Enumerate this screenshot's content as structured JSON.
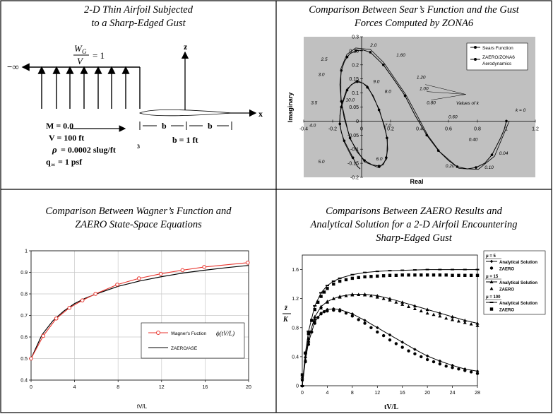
{
  "panels": {
    "tl": {
      "title": "2-D Thin Airfoil Subjected\nto a Sharp-Edged Gust",
      "gust_num": "W",
      "gust_num_sub": "G",
      "gust_den": "V",
      "gust_eq": "= 1",
      "axis_z": "z",
      "axis_x": "x",
      "minus_inf": "−∞",
      "mach": "M = 0.0",
      "velocity": "V = 100 ft",
      "density_rho": "ρ",
      "density": "= 0.0002 slug/ft",
      "density_exp": "3",
      "q_label": "q",
      "q_sub": "∞",
      "q_val": "= 1 psf",
      "b_left": "b",
      "b_right": "b",
      "b_eq": "b = 1 ft"
    },
    "tr": {
      "title": "Comparison Between Sear’s Function and the Gust\nForces Computed by ZONA6",
      "xlabel": "Real",
      "ylabel": "Imaginary",
      "legend": [
        "Sears Function",
        "ZAERO/ZONA6",
        "Aerodynamics"
      ],
      "values_of_k": "Values of k",
      "k0_label": "k = 0"
    },
    "bl": {
      "title": "Comparison Between Wagner’s Function and\nZAERO State-Space Equations",
      "xlabel": "tV/L",
      "legend": [
        "Wagner's Fuction",
        "ZAERO/ASE"
      ]
    },
    "br": {
      "title": "Comparisons Between ZAERO Results and\nAnalytical Solution for a 2-D Airfoil Encountering\nSharp-Edged Gust",
      "xlabel": "tV/L",
      "ylabel_top": "z̄",
      "ylabel_bottom": "K",
      "legend_groups": [
        {
          "header": "μ = 5",
          "items": [
            "Analytical Solution",
            "ZAERO"
          ]
        },
        {
          "header": "μ = 15",
          "items": [
            "Analytical Solution",
            "ZAERO"
          ]
        },
        {
          "header": "μ = 100",
          "items": [
            "Analytical Solution",
            "ZAERO"
          ]
        }
      ]
    }
  },
  "chart_data": [
    {
      "id": "sears",
      "type": "scatter",
      "title": "Comparison Between Sear’s Function and the Gust Forces Computed by ZONA6",
      "xlabel": "Real",
      "ylabel": "Imaginary",
      "xlim": [
        -0.4,
        1.2
      ],
      "ylim": [
        -0.2,
        0.3
      ],
      "xticks": [
        "-0.4",
        "-0.2",
        "0",
        "0.2",
        "0.4",
        "0.6",
        "0.8",
        "1",
        "1.2"
      ],
      "yticks": [
        "0.3",
        "0.25",
        "0.2",
        "0.15",
        "0.1",
        "0.05",
        "0",
        "-0.05",
        "-0.1",
        "-0.15",
        "-0.2"
      ],
      "grid": false,
      "legend_position": "top-right",
      "series": [
        {
          "name": "Sears Function",
          "x": [
            1.0,
            0.985,
            0.96,
            0.93,
            0.9,
            0.85,
            0.79,
            0.73,
            0.66,
            0.6,
            0.53,
            0.45,
            0.37,
            0.3,
            0.22,
            0.15,
            0.1,
            0.06,
            0.01,
            -0.04,
            -0.08,
            -0.1,
            -0.12,
            -0.14,
            -0.15,
            -0.14,
            -0.12,
            -0.08,
            -0.03,
            0.02,
            0.07,
            0.12,
            0.15,
            0.17,
            0.18,
            0.175,
            0.16,
            0.12,
            0.08,
            0.04,
            0.01,
            -0.03,
            -0.07,
            -0.1,
            -0.12,
            -0.14,
            -0.15,
            -0.15,
            -0.14,
            -0.12,
            -0.09,
            -0.06,
            -0.03,
            -0.01
          ],
          "y": [
            0.0,
            -0.03,
            -0.06,
            -0.09,
            -0.12,
            -0.15,
            -0.165,
            -0.17,
            -0.162,
            -0.14,
            -0.105,
            -0.05,
            0.02,
            0.09,
            0.15,
            0.2,
            0.225,
            0.245,
            0.253,
            0.25,
            0.24,
            0.228,
            0.21,
            0.18,
            0.13,
            0.07,
            0.01,
            -0.06,
            -0.11,
            -0.14,
            -0.155,
            -0.16,
            -0.155,
            -0.13,
            -0.1,
            -0.06,
            -0.02,
            0.04,
            0.09,
            0.12,
            0.135,
            0.14,
            0.13,
            0.11,
            0.08,
            0.05,
            0.02,
            -0.01,
            -0.04,
            -0.07,
            -0.1,
            -0.13,
            -0.16,
            -0.17
          ]
        },
        {
          "name": "ZAERO/ZONA6 Aerodynamics",
          "x": [
            1.0,
            0.9,
            0.79,
            0.66,
            0.53,
            0.45,
            0.3,
            0.15,
            0.06,
            -0.04,
            -0.1,
            -0.14,
            -0.14,
            -0.08,
            0.02,
            0.12,
            0.17,
            0.175,
            0.12,
            0.04,
            -0.03,
            -0.1,
            -0.14,
            -0.15,
            -0.12,
            -0.06
          ],
          "y": [
            0.0,
            -0.12,
            -0.165,
            -0.162,
            -0.105,
            -0.05,
            0.09,
            0.2,
            0.245,
            0.25,
            0.228,
            0.18,
            0.07,
            -0.06,
            -0.14,
            -0.16,
            -0.13,
            -0.06,
            0.04,
            0.12,
            0.14,
            0.11,
            0.05,
            -0.01,
            -0.07,
            -0.13
          ]
        }
      ],
      "annotations": [
        "2.0",
        "1.60",
        "1.20",
        "1.00",
        "0.80",
        "0.60",
        "0.40",
        "0.20",
        "0.10",
        "0.04",
        "k = 0",
        "2.5",
        "3.0",
        "3.5",
        "4.0",
        "5.0",
        "6.0",
        "7.0",
        "8.0",
        "9.0",
        "10.0"
      ]
    },
    {
      "id": "wagner",
      "type": "line",
      "title": "Comparison Between Wagner’s Function and ZAERO State-Space Equations",
      "xlabel": "tV/L",
      "ylabel": "",
      "xlim": [
        0,
        20
      ],
      "ylim": [
        0.4,
        1.0
      ],
      "xticks": [
        "0",
        "4",
        "8",
        "12",
        "16",
        "20"
      ],
      "yticks": [
        "1",
        "0.9",
        "0.8",
        "0.7",
        "0.6",
        "0.5",
        "0.4"
      ],
      "grid": true,
      "legend_position": "bottom-right",
      "series": [
        {
          "name": "Wagner's Fuction",
          "color": "#e8362f",
          "x": [
            0,
            1.12,
            2.32,
            3.52,
            4.72,
            5.92,
            7.92,
            9.92,
            11.92,
            13.92,
            15.92,
            19.92
          ],
          "y": [
            0.5,
            0.605,
            0.686,
            0.735,
            0.77,
            0.8,
            0.843,
            0.872,
            0.893,
            0.91,
            0.925,
            0.945
          ]
        },
        {
          "name": "ZAERO/ASE",
          "color": "#000000",
          "x": [
            0,
            1,
            2,
            3,
            4,
            5,
            6,
            8,
            10,
            12,
            14,
            16,
            18,
            20
          ],
          "y": [
            0.5,
            0.61,
            0.675,
            0.72,
            0.755,
            0.78,
            0.8,
            0.835,
            0.86,
            0.88,
            0.897,
            0.91,
            0.922,
            0.932
          ]
        }
      ]
    },
    {
      "id": "gust",
      "type": "line",
      "title": "Comparisons Between ZAERO Results and Analytical Solution for a 2-D Airfoil Encountering Sharp-Edged Gust",
      "xlabel": "tV/L",
      "ylabel": "z̄ / K",
      "xlim": [
        0,
        28
      ],
      "ylim": [
        0,
        1.8
      ],
      "xticks": [
        "0",
        "4",
        "8",
        "12",
        "16",
        "20",
        "24",
        "28"
      ],
      "yticks": [
        "1.6",
        "1.2",
        "0.8",
        "0.4",
        "0"
      ],
      "grid": false,
      "legend_position": "top-right",
      "series": [
        {
          "name": "μ = 5 Analytical Solution",
          "marker": "diamond",
          "x": [
            0,
            0.5,
            1,
            2,
            3,
            4,
            5,
            6,
            8,
            10,
            12,
            14,
            16,
            18,
            20,
            22,
            24,
            26,
            28
          ],
          "y": [
            0,
            0.35,
            0.6,
            0.88,
            1.0,
            1.05,
            1.06,
            1.05,
            0.99,
            0.9,
            0.8,
            0.7,
            0.6,
            0.5,
            0.41,
            0.34,
            0.28,
            0.23,
            0.2
          ]
        },
        {
          "name": "μ = 5 ZAERO",
          "marker": "dot",
          "x": [
            0,
            0.5,
            1,
            1.5,
            2,
            2.5,
            3,
            3.5,
            4,
            5,
            6,
            7,
            8,
            9,
            10,
            11,
            12,
            13,
            14,
            15,
            16,
            17,
            18,
            19,
            20,
            21,
            22,
            23,
            24,
            25,
            26,
            27,
            28
          ],
          "y": [
            0.08,
            0.33,
            0.57,
            0.74,
            0.86,
            0.94,
            0.99,
            1.02,
            1.03,
            1.04,
            1.03,
            1.0,
            0.96,
            0.91,
            0.86,
            0.8,
            0.74,
            0.69,
            0.63,
            0.58,
            0.53,
            0.48,
            0.44,
            0.4,
            0.36,
            0.33,
            0.3,
            0.27,
            0.25,
            0.23,
            0.21,
            0.19,
            0.17
          ]
        },
        {
          "name": "μ = 15 Analytical Solution",
          "marker": "triangle",
          "x": [
            0,
            0.5,
            1,
            2,
            3,
            4,
            5,
            6,
            8,
            10,
            12,
            14,
            16,
            18,
            20,
            22,
            24,
            26,
            28
          ],
          "y": [
            0,
            0.4,
            0.65,
            0.95,
            1.09,
            1.16,
            1.2,
            1.23,
            1.26,
            1.26,
            1.24,
            1.2,
            1.15,
            1.1,
            1.05,
            1.0,
            0.95,
            0.9,
            0.86
          ]
        },
        {
          "name": "μ = 15 ZAERO",
          "marker": "triangle",
          "x": [
            0,
            1,
            2,
            3,
            4,
            5,
            6,
            7,
            8,
            9,
            10,
            11,
            12,
            13,
            14,
            15,
            16,
            17,
            18,
            19,
            20,
            21,
            22,
            23,
            24,
            25,
            26,
            27,
            28
          ],
          "y": [
            0.12,
            0.62,
            0.92,
            1.07,
            1.15,
            1.2,
            1.22,
            1.24,
            1.25,
            1.255,
            1.25,
            1.24,
            1.22,
            1.2,
            1.18,
            1.15,
            1.12,
            1.09,
            1.06,
            1.03,
            1.0,
            0.98,
            0.96,
            0.93,
            0.91,
            0.89,
            0.87,
            0.85,
            0.83
          ]
        },
        {
          "name": "μ = 100 Analytical Solution",
          "marker": "dash",
          "x": [
            0,
            0.5,
            1,
            2,
            3,
            4,
            5,
            6,
            8,
            10,
            12,
            14,
            16,
            18,
            20,
            22,
            24,
            26,
            28
          ],
          "y": [
            0,
            0.45,
            0.75,
            1.1,
            1.28,
            1.38,
            1.44,
            1.48,
            1.53,
            1.56,
            1.575,
            1.585,
            1.59,
            1.595,
            1.6,
            1.6,
            1.6,
            1.6,
            1.6
          ]
        },
        {
          "name": "μ = 100 ZAERO",
          "marker": "square",
          "x": [
            0,
            0.5,
            1,
            1.5,
            2,
            2.5,
            3,
            3.5,
            4,
            5,
            6,
            7,
            8,
            9,
            10,
            11,
            12,
            13,
            14,
            15,
            16,
            17,
            18,
            19,
            20,
            21,
            22,
            23,
            24,
            25,
            26,
            27,
            28
          ],
          "y": [
            0.15,
            0.45,
            0.72,
            0.9,
            1.05,
            1.15,
            1.23,
            1.29,
            1.34,
            1.4,
            1.44,
            1.46,
            1.48,
            1.49,
            1.5,
            1.505,
            1.51,
            1.515,
            1.52,
            1.52,
            1.525,
            1.525,
            1.525,
            1.525,
            1.525,
            1.525,
            1.525,
            1.525,
            1.52,
            1.52,
            1.52,
            1.52,
            1.52
          ]
        }
      ]
    }
  ]
}
